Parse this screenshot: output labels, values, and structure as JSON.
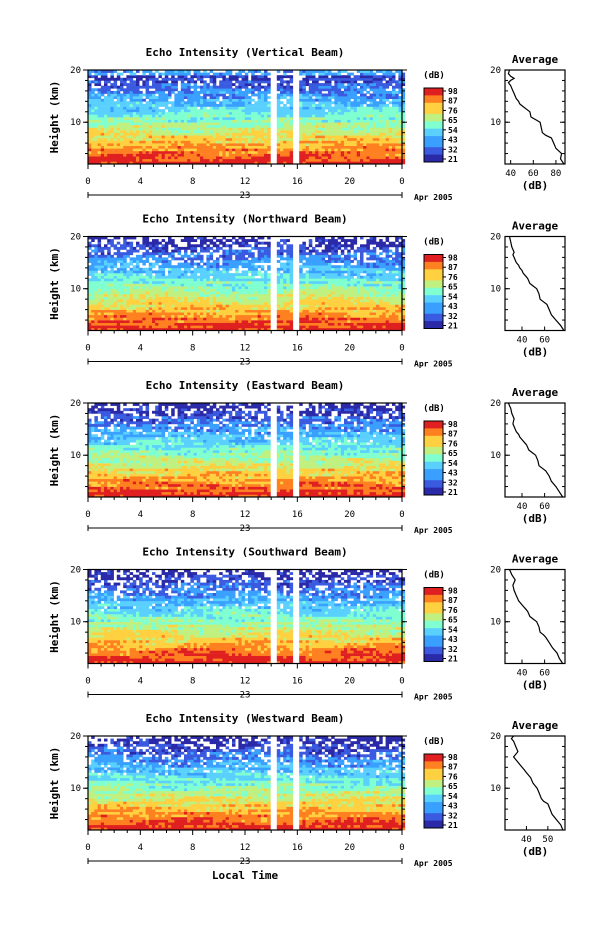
{
  "chart_data": [
    {
      "type": "heatmap",
      "title": "Echo Intensity (Vertical Beam)",
      "ylabel": "Height (km)",
      "ylim": [
        2,
        20
      ],
      "yticks": [
        "20",
        "10"
      ],
      "xlim": [
        0,
        24
      ],
      "xticks": [
        "0",
        "4",
        "8",
        "12",
        "16",
        "20",
        "0"
      ],
      "date_label": "23",
      "date_suffix": "Apr 2005",
      "data_gap_hours": [
        [
          13.7,
          14.3
        ],
        [
          15.6,
          16.1
        ]
      ],
      "colorbar": {
        "label": "(dB)",
        "ticks": [
          "98",
          "87",
          "76",
          "65",
          "54",
          "43",
          "32",
          "21"
        ]
      },
      "profile": {
        "title": "Average",
        "xlabel": "(dB)",
        "xticks": [
          "40",
          "60",
          "80"
        ],
        "xlim": [
          35,
          88
        ],
        "ylim": [
          2,
          20
        ],
        "x": [
          87,
          84,
          85,
          80,
          79,
          78,
          76,
          71,
          68,
          67,
          66,
          62,
          58,
          57,
          54,
          51,
          48,
          47,
          45,
          44,
          43,
          42,
          41,
          40,
          39,
          38,
          40,
          43,
          40,
          38,
          39
        ],
        "y": [
          2,
          3,
          4,
          5,
          5.5,
          6,
          7,
          7.5,
          8,
          9,
          10,
          10.5,
          11,
          12,
          12.5,
          13,
          13.5,
          14,
          14.5,
          15,
          15.5,
          16,
          16.5,
          17,
          17.3,
          17.6,
          18,
          18.4,
          18.8,
          19.3,
          20
        ]
      }
    },
    {
      "type": "heatmap",
      "title": "Echo Intensity (Northward Beam)",
      "ylabel": "Height (km)",
      "ylim": [
        2,
        20
      ],
      "yticks": [
        "20",
        "10"
      ],
      "xlim": [
        0,
        24
      ],
      "xticks": [
        "0",
        "4",
        "8",
        "12",
        "16",
        "20",
        "0"
      ],
      "date_label": "23",
      "date_suffix": "Apr 2005",
      "data_gap_hours": [
        [
          13.7,
          14.3
        ],
        [
          15.6,
          16.1
        ]
      ],
      "colorbar": {
        "label": "(dB)",
        "ticks": [
          "98",
          "87",
          "76",
          "65",
          "54",
          "43",
          "32",
          "21"
        ]
      },
      "profile": {
        "title": "Average",
        "xlabel": "(dB)",
        "xticks": [
          "40",
          "60"
        ],
        "xlim": [
          25,
          78
        ],
        "ylim": [
          2,
          20
        ],
        "x": [
          77,
          74,
          70,
          66,
          64,
          62,
          59,
          56,
          55,
          53,
          50,
          47,
          45,
          43,
          41,
          40,
          38,
          37,
          35,
          34,
          33,
          32,
          33,
          31,
          30,
          29
        ],
        "y": [
          2,
          3,
          4,
          5,
          6,
          7,
          7.5,
          8,
          9,
          10,
          10.5,
          11,
          12,
          12.5,
          13,
          13.5,
          14,
          14.5,
          15,
          15.5,
          16,
          16.5,
          17,
          18,
          19,
          20
        ]
      }
    },
    {
      "type": "heatmap",
      "title": "Echo Intensity (Eastward Beam)",
      "ylabel": "Height (km)",
      "ylim": [
        2,
        20
      ],
      "yticks": [
        "20",
        "10"
      ],
      "xlim": [
        0,
        24
      ],
      "xticks": [
        "0",
        "4",
        "8",
        "12",
        "16",
        "20",
        "0"
      ],
      "date_label": "23",
      "date_suffix": "Apr 2005",
      "data_gap_hours": [
        [
          13.7,
          14.3
        ],
        [
          15.6,
          16.1
        ]
      ],
      "colorbar": {
        "label": "(dB)",
        "ticks": [
          "98",
          "87",
          "76",
          "65",
          "54",
          "43",
          "32",
          "21"
        ]
      },
      "profile": {
        "title": "Average",
        "xlabel": "(dB)",
        "xticks": [
          "40",
          "60"
        ],
        "xlim": [
          25,
          78
        ],
        "ylim": [
          2,
          20
        ],
        "x": [
          76,
          73,
          70,
          66,
          64,
          61,
          58,
          55,
          54,
          52,
          49,
          46,
          44,
          42,
          40,
          38,
          37,
          35,
          34,
          33,
          32,
          33,
          31,
          30,
          29,
          28
        ],
        "y": [
          2,
          3,
          4,
          5,
          6,
          7,
          7.5,
          8,
          9,
          10,
          10.5,
          11,
          12,
          12.5,
          13,
          13.5,
          14,
          14.5,
          15,
          15.5,
          16,
          17,
          18,
          19,
          19.5,
          20
        ]
      }
    },
    {
      "type": "heatmap",
      "title": "Echo Intensity (Southward Beam)",
      "ylabel": "Height (km)",
      "ylim": [
        2,
        20
      ],
      "yticks": [
        "20",
        "10"
      ],
      "xlim": [
        0,
        24
      ],
      "xticks": [
        "0",
        "4",
        "8",
        "12",
        "16",
        "20",
        "0"
      ],
      "date_label": "23",
      "date_suffix": "Apr 2005",
      "data_gap_hours": [
        [
          13.7,
          14.3
        ],
        [
          15.6,
          16.1
        ]
      ],
      "colorbar": {
        "label": "(dB)",
        "ticks": [
          "98",
          "87",
          "76",
          "65",
          "54",
          "43",
          "32",
          "21"
        ]
      },
      "profile": {
        "title": "Average",
        "xlabel": "(dB)",
        "xticks": [
          "40",
          "60"
        ],
        "xlim": [
          25,
          78
        ],
        "ylim": [
          2,
          20
        ],
        "x": [
          76,
          73,
          71,
          67,
          64,
          61,
          59,
          56,
          55,
          53,
          50,
          47,
          45,
          43,
          41,
          39,
          37,
          36,
          35,
          34,
          33,
          32,
          34,
          31,
          30,
          29
        ],
        "y": [
          2,
          3,
          4,
          5,
          6,
          7,
          7.5,
          8,
          9,
          10,
          10.5,
          11,
          12,
          12.5,
          13,
          13.5,
          14,
          14.5,
          15,
          15.5,
          16,
          17,
          18,
          19,
          19.5,
          20
        ]
      }
    },
    {
      "type": "heatmap",
      "title": "Echo Intensity (Westward Beam)",
      "ylabel": "Height (km)",
      "ylim": [
        2,
        20
      ],
      "yticks": [
        "20",
        "10"
      ],
      "xlim": [
        0,
        24
      ],
      "xticks": [
        "0",
        "4",
        "8",
        "12",
        "16",
        "20",
        "0"
      ],
      "date_label": "23",
      "date_suffix": "Apr 2005",
      "data_gap_hours": [
        [
          13.7,
          14.3
        ],
        [
          15.6,
          16.1
        ]
      ],
      "colorbar": {
        "label": "(dB)",
        "ticks": [
          "98",
          "87",
          "76",
          "65",
          "54",
          "43",
          "32",
          "21"
        ]
      },
      "profile": {
        "title": "Average",
        "xlabel": "(dB)",
        "xticks": [
          "40",
          "50"
        ],
        "xlim": [
          30,
          58
        ],
        "ylim": [
          2,
          20
        ],
        "x": [
          57,
          56,
          54,
          52,
          51,
          50,
          48,
          47,
          46,
          45,
          44,
          43,
          42,
          41,
          40,
          39,
          38,
          37,
          36,
          35,
          34,
          36,
          35,
          34,
          33,
          34
        ],
        "y": [
          2,
          3,
          4,
          5,
          6,
          7,
          7.5,
          8,
          9,
          10,
          10.5,
          11,
          12,
          12.5,
          13,
          13.5,
          14,
          14.5,
          15,
          15.5,
          16,
          17,
          18,
          19,
          19.5,
          20
        ]
      }
    }
  ],
  "shared": {
    "xlabel": "Local Time"
  },
  "colors": {
    "scale": [
      "#2a2aa8",
      "#3a5ae0",
      "#3aa0ff",
      "#5ad0ff",
      "#80ffd0",
      "#c0f080",
      "#ffd040",
      "#ff8020",
      "#e02020"
    ],
    "gap": "#ffffff",
    "line": "#000000"
  }
}
